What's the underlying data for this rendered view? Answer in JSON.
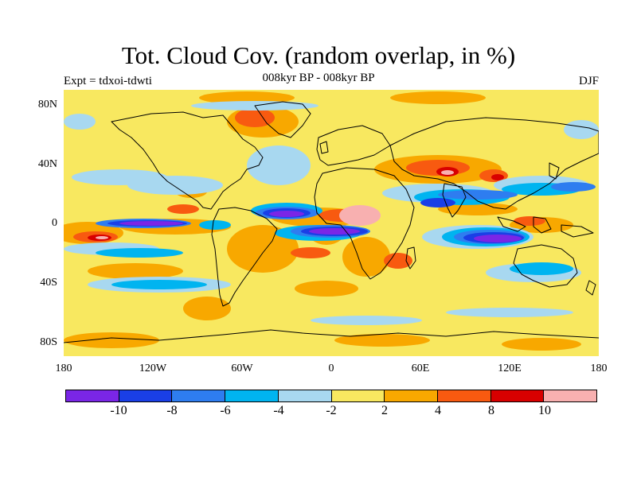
{
  "title": "Tot. Cloud Cov. (random overlap, in %)",
  "subtitle": "008kyr BP - 008kyr BP",
  "left_label": "Expt = tdxoi-tdwti",
  "right_label": "DJF",
  "lat_labels": [
    "80N",
    "40N",
    "0",
    "40S",
    "80S"
  ],
  "lon_labels": [
    "180",
    "120W",
    "60W",
    "0",
    "60E",
    "120E",
    "180"
  ],
  "colorbar": {
    "labels": [
      "-10",
      "-8",
      "-6",
      "-4",
      "-2",
      "2",
      "4",
      "8",
      "10"
    ],
    "colors": [
      "#7a26e6",
      "#1a3fe6",
      "#2e7df0",
      "#00b4f0",
      "#a8d8f0",
      "#f8e860",
      "#f8a800",
      "#f85a10",
      "#d80000",
      "#f8b0b0"
    ]
  },
  "map": {
    "background_color": "#f8e860",
    "coastline_color": "#000000"
  }
}
